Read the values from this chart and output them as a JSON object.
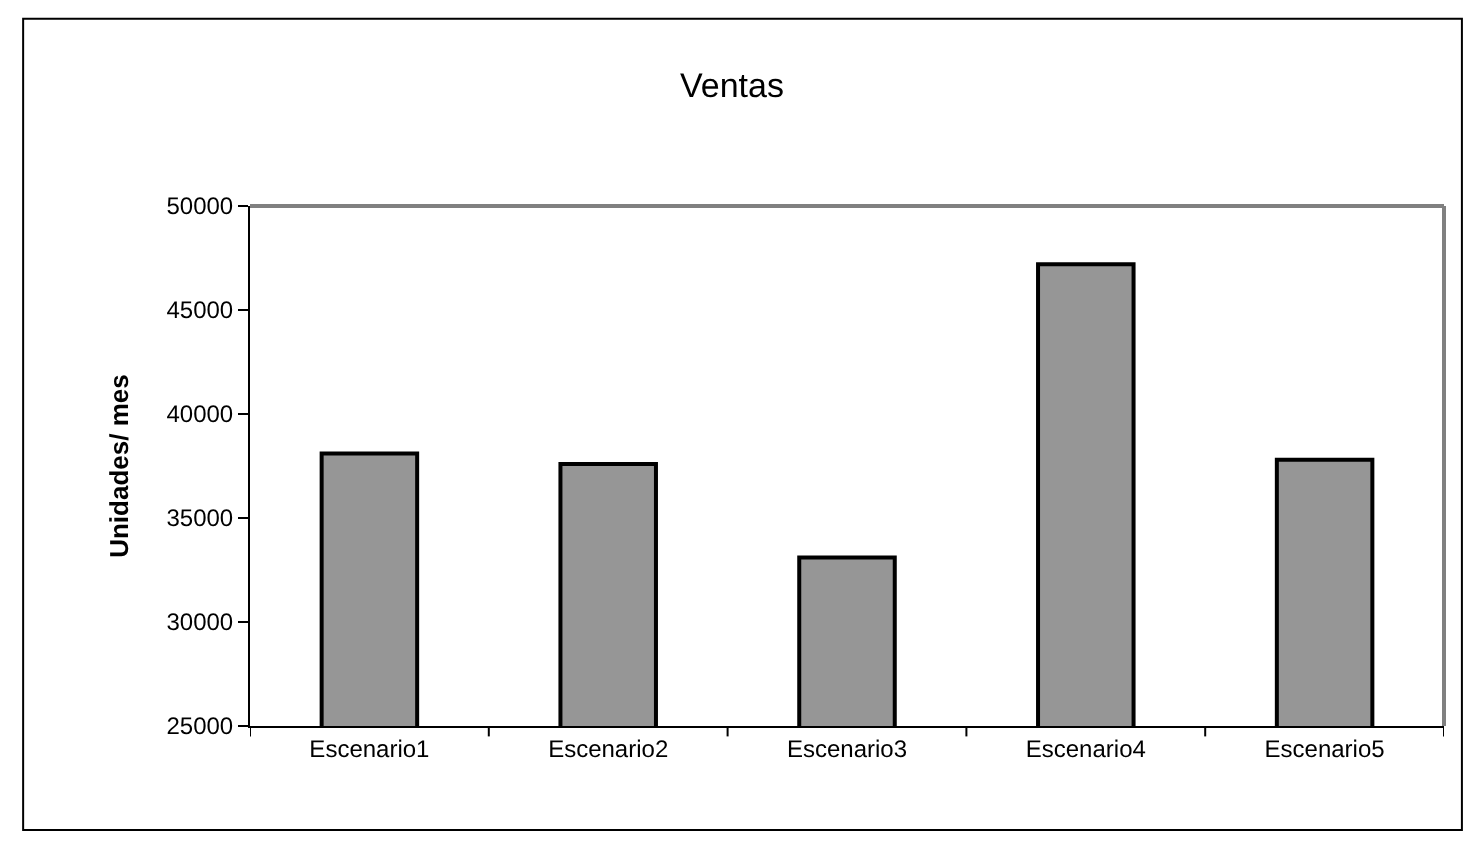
{
  "chart_data": {
    "type": "bar",
    "title": "Ventas",
    "ylabel": "Unidades/ mes",
    "categories": [
      "Escenario1",
      "Escenario2",
      "Escenario3",
      "Escenario4",
      "Escenario5"
    ],
    "values": [
      38100,
      37600,
      33100,
      47200,
      37800
    ],
    "color": "#969696",
    "ylim": [
      25000,
      50000
    ],
    "yticks": [
      25000,
      30000,
      35000,
      40000,
      45000,
      50000
    ]
  }
}
